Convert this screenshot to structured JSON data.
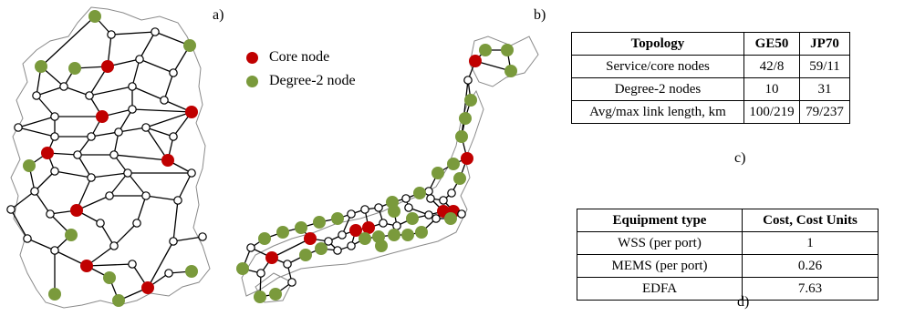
{
  "labels": {
    "a": "a)",
    "b": "b)",
    "c": "c)",
    "d": "d)"
  },
  "legend": {
    "core": {
      "label": "Core node",
      "color": "#c00000"
    },
    "degree2": {
      "label": "Degree-2 node",
      "color": "#7a9a3c"
    }
  },
  "table_c": {
    "headers": [
      "Topology",
      "GE50",
      "JP70"
    ],
    "rows": [
      [
        "Service/core nodes",
        "42/8",
        "59/11"
      ],
      [
        "Degree-2 nodes",
        "10",
        "31"
      ],
      [
        "Avg/max link length, km",
        "100/219",
        "79/237"
      ]
    ]
  },
  "table_d": {
    "headers": [
      "Equipment type",
      "Cost, Cost Units"
    ],
    "rows": [
      [
        "WSS (per port)",
        "1"
      ],
      [
        "MEMS (per port)",
        "0.26"
      ],
      [
        "EDFA",
        "7.63"
      ]
    ]
  },
  "colors": {
    "core": "#c00000",
    "degree2": "#7a9a3c",
    "service": "#ffffff",
    "outline": "#9a9a9a"
  }
}
